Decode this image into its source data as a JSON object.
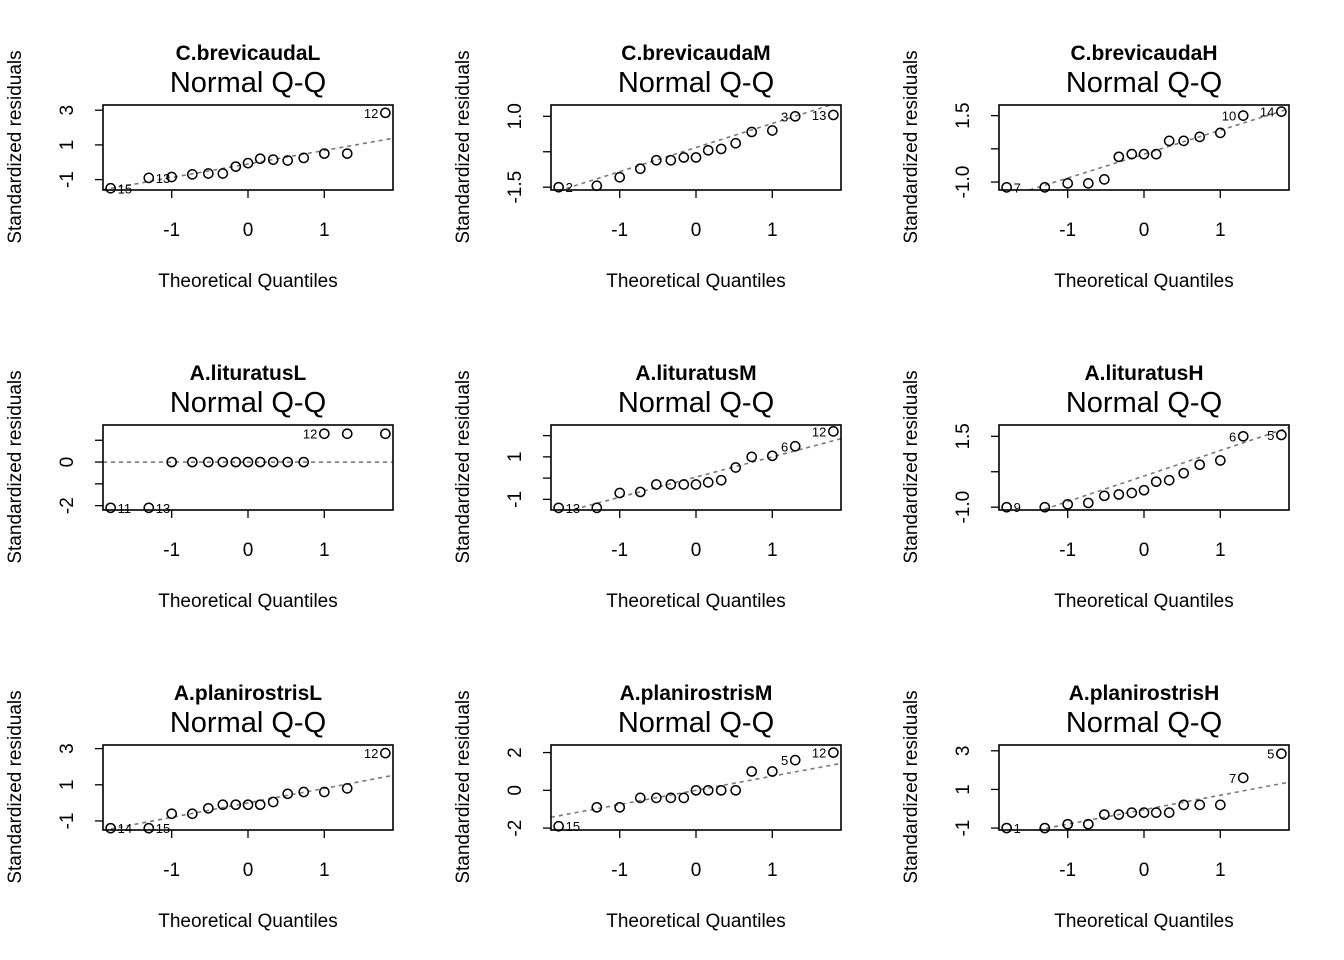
{
  "chart_data": [
    {
      "type": "scatter",
      "title": "C.brevicaudaL",
      "subtitle": "Normal Q-Q",
      "xlabel": "Theoretical Quantiles",
      "ylabel": "Standardized residuals",
      "xticks": [
        -1,
        0,
        1
      ],
      "yticks": [
        -1,
        1,
        3
      ],
      "ytick_labels": [
        "-1",
        "1",
        "3"
      ],
      "ylim": [
        -1.6,
        3.3
      ],
      "xlim": [
        -1.9,
        1.9
      ],
      "x": [
        -1.8,
        -1.3,
        -1.0,
        -0.73,
        -0.52,
        -0.33,
        -0.16,
        0.0,
        0.16,
        0.33,
        0.52,
        0.73,
        1.0,
        1.3,
        1.8
      ],
      "y": [
        -1.5,
        -0.9,
        -0.85,
        -0.7,
        -0.65,
        -0.65,
        -0.25,
        -0.05,
        0.2,
        0.15,
        0.1,
        0.25,
        0.5,
        0.5,
        2.85
      ],
      "ref_line": [
        -0.1,
        0.78
      ],
      "point_labels": [
        {
          "index": 14,
          "text": "12"
        },
        {
          "index": 1,
          "text": "13"
        },
        {
          "index": 0,
          "text": "15"
        }
      ]
    },
    {
      "type": "scatter",
      "title": "C.brevicaudaM",
      "subtitle": "Normal Q-Q",
      "xlabel": "Theoretical Quantiles",
      "ylabel": "Standardized residuals",
      "xticks": [
        -1,
        0,
        1
      ],
      "yticks": [
        -1.5,
        -0.25,
        1.0
      ],
      "ytick_labels": [
        "-1.5",
        "",
        "1.0"
      ],
      "ylim": [
        -1.6,
        1.4
      ],
      "xlim": [
        -1.9,
        1.9
      ],
      "x": [
        -1.8,
        -1.3,
        -1.0,
        -0.73,
        -0.52,
        -0.33,
        -0.16,
        0.0,
        0.16,
        0.33,
        0.52,
        0.73,
        1.0,
        1.3,
        1.8
      ],
      "y": [
        -1.5,
        -1.45,
        -1.15,
        -0.85,
        -0.55,
        -0.55,
        -0.45,
        -0.45,
        -0.2,
        -0.15,
        0.05,
        0.45,
        0.5,
        1.0,
        1.05
      ],
      "ref_line": [
        -0.1,
        0.85
      ],
      "point_labels": [
        {
          "index": 14,
          "text": "13"
        },
        {
          "index": 13,
          "text": "3"
        },
        {
          "index": 0,
          "text": "2"
        }
      ]
    },
    {
      "type": "scatter",
      "title": "C.brevicaudaH",
      "subtitle": "Normal Q-Q",
      "xlabel": "Theoretical Quantiles",
      "ylabel": "Standardized residuals",
      "xticks": [
        -1,
        0,
        1
      ],
      "yticks": [
        -1.0,
        0.25,
        1.5
      ],
      "ytick_labels": [
        "-1.0",
        "",
        "1.5"
      ],
      "ylim": [
        -1.3,
        1.9
      ],
      "xlim": [
        -1.9,
        1.9
      ],
      "x": [
        -1.8,
        -1.3,
        -1.0,
        -0.73,
        -0.52,
        -0.33,
        -0.16,
        0.0,
        0.16,
        0.33,
        0.52,
        0.73,
        1.0,
        1.3,
        1.8
      ],
      "y": [
        -1.2,
        -1.2,
        -1.05,
        -1.05,
        -0.9,
        -0.05,
        0.05,
        0.05,
        0.05,
        0.55,
        0.55,
        0.7,
        0.85,
        1.5,
        1.65
      ],
      "ref_line": [
        0.05,
        0.9
      ],
      "point_labels": [
        {
          "index": 14,
          "text": "14"
        },
        {
          "index": 13,
          "text": "10"
        },
        {
          "index": 0,
          "text": "7"
        }
      ]
    },
    {
      "type": "scatter",
      "title": "A.lituratusL",
      "subtitle": "Normal Q-Q",
      "xlabel": "Theoretical Quantiles",
      "ylabel": "Standardized residuals",
      "xticks": [
        -1,
        0,
        1
      ],
      "yticks": [
        -2,
        -1,
        0,
        1
      ],
      "ytick_labels": [
        "-2",
        "",
        "0",
        ""
      ],
      "ylim": [
        -2.2,
        1.7
      ],
      "xlim": [
        -1.9,
        1.9
      ],
      "x": [
        -1.8,
        -1.3,
        -1.0,
        -0.73,
        -0.52,
        -0.33,
        -0.16,
        0.0,
        0.16,
        0.33,
        0.52,
        0.73,
        1.0,
        1.3,
        1.8
      ],
      "y": [
        -2.1,
        -2.1,
        0.0,
        0.0,
        0.0,
        0.0,
        0.0,
        0.0,
        0.0,
        0.0,
        0.0,
        0.0,
        1.3,
        1.3,
        1.3
      ],
      "ref_line": [
        0.0,
        0.0
      ],
      "point_labels": [
        {
          "index": 12,
          "text": "12"
        },
        {
          "index": 1,
          "text": "13"
        },
        {
          "index": 0,
          "text": "11"
        }
      ]
    },
    {
      "type": "scatter",
      "title": "A.lituratusM",
      "subtitle": "Normal Q-Q",
      "xlabel": "Theoretical Quantiles",
      "ylabel": "Standardized residuals",
      "xticks": [
        -1,
        0,
        1
      ],
      "yticks": [
        -1,
        0,
        1,
        2
      ],
      "ytick_labels": [
        "-1",
        "",
        "1",
        ""
      ],
      "ylim": [
        -1.5,
        2.5
      ],
      "xlim": [
        -1.9,
        1.9
      ],
      "x": [
        -1.8,
        -1.3,
        -1.0,
        -0.73,
        -0.52,
        -0.33,
        -0.16,
        0.0,
        0.16,
        0.33,
        0.52,
        0.73,
        1.0,
        1.3,
        1.8
      ],
      "y": [
        -1.4,
        -1.4,
        -0.7,
        -0.65,
        -0.3,
        -0.3,
        -0.3,
        -0.3,
        -0.2,
        -0.1,
        0.5,
        1.0,
        1.05,
        1.5,
        2.2
      ],
      "ref_line": [
        0.05,
        0.95
      ],
      "point_labels": [
        {
          "index": 14,
          "text": "12"
        },
        {
          "index": 13,
          "text": "6"
        },
        {
          "index": 0,
          "text": "13"
        }
      ]
    },
    {
      "type": "scatter",
      "title": "A.lituratusH",
      "subtitle": "Normal Q-Q",
      "xlabel": "Theoretical Quantiles",
      "ylabel": "Standardized residuals",
      "xticks": [
        -1,
        0,
        1
      ],
      "yticks": [
        -1.0,
        0.25,
        1.5
      ],
      "ytick_labels": [
        "-1.0",
        "",
        "1.5"
      ],
      "ylim": [
        -1.1,
        1.9
      ],
      "xlim": [
        -1.9,
        1.9
      ],
      "x": [
        -1.8,
        -1.3,
        -1.0,
        -0.73,
        -0.52,
        -0.33,
        -0.16,
        0.0,
        0.16,
        0.33,
        0.52,
        0.73,
        1.0,
        1.3,
        1.8
      ],
      "y": [
        -1.0,
        -1.0,
        -0.9,
        -0.85,
        -0.6,
        -0.55,
        -0.5,
        -0.4,
        -0.1,
        -0.05,
        0.2,
        0.5,
        0.65,
        1.5,
        1.55
      ],
      "ref_line": [
        0.1,
        0.9
      ],
      "point_labels": [
        {
          "index": 14,
          "text": "5"
        },
        {
          "index": 13,
          "text": "6"
        },
        {
          "index": 0,
          "text": "9"
        }
      ]
    },
    {
      "type": "scatter",
      "title": "A.planirostrisL",
      "subtitle": "Normal Q-Q",
      "xlabel": "Theoretical Quantiles",
      "ylabel": "Standardized residuals",
      "xticks": [
        -1,
        0,
        1
      ],
      "yticks": [
        -1,
        1,
        3
      ],
      "ytick_labels": [
        "-1",
        "1",
        "3"
      ],
      "ylim": [
        -1.5,
        3.2
      ],
      "xlim": [
        -1.9,
        1.9
      ],
      "x": [
        -1.8,
        -1.3,
        -1.0,
        -0.73,
        -0.52,
        -0.33,
        -0.16,
        0.0,
        0.16,
        0.33,
        0.52,
        0.73,
        1.0,
        1.3,
        1.8
      ],
      "y": [
        -1.4,
        -1.4,
        -0.6,
        -0.6,
        -0.3,
        -0.1,
        -0.1,
        -0.1,
        -0.1,
        0.05,
        0.5,
        0.6,
        0.6,
        0.8,
        2.75
      ],
      "ref_line": [
        0.0,
        0.8
      ],
      "point_labels": [
        {
          "index": 14,
          "text": "12"
        },
        {
          "index": 1,
          "text": "15"
        },
        {
          "index": 0,
          "text": "14"
        }
      ]
    },
    {
      "type": "scatter",
      "title": "A.planirostrisM",
      "subtitle": "Normal Q-Q",
      "xlabel": "Theoretical Quantiles",
      "ylabel": "Standardized residuals",
      "xticks": [
        -1,
        0,
        1
      ],
      "yticks": [
        -2,
        0,
        2
      ],
      "ytick_labels": [
        "-2",
        "0",
        "2"
      ],
      "ylim": [
        -2.1,
        2.4
      ],
      "xlim": [
        -1.9,
        1.9
      ],
      "x": [
        -1.8,
        -1.3,
        -1.0,
        -0.73,
        -0.52,
        -0.33,
        -0.16,
        0.0,
        0.16,
        0.33,
        0.52,
        0.73,
        1.0,
        1.3,
        1.8
      ],
      "y": [
        -1.9,
        -0.9,
        -0.9,
        -0.4,
        -0.4,
        -0.4,
        -0.4,
        0.0,
        0.0,
        0.0,
        0.0,
        1.0,
        1.0,
        1.6,
        2.0
      ],
      "ref_line": [
        0.0,
        0.75
      ],
      "point_labels": [
        {
          "index": 14,
          "text": "12"
        },
        {
          "index": 13,
          "text": "5"
        },
        {
          "index": 0,
          "text": "15"
        }
      ]
    },
    {
      "type": "scatter",
      "title": "A.planirostrisH",
      "subtitle": "Normal Q-Q",
      "xlabel": "Theoretical Quantiles",
      "ylabel": "Standardized residuals",
      "xticks": [
        -1,
        0,
        1
      ],
      "yticks": [
        -1,
        1,
        3
      ],
      "ytick_labels": [
        "-1",
        "1",
        "3"
      ],
      "ylim": [
        -1.1,
        3.3
      ],
      "xlim": [
        -1.9,
        1.9
      ],
      "x": [
        -1.8,
        -1.3,
        -1.0,
        -0.73,
        -0.52,
        -0.33,
        -0.16,
        0.0,
        0.16,
        0.33,
        0.52,
        0.73,
        1.0,
        1.3,
        1.8
      ],
      "y": [
        -1.0,
        -1.0,
        -0.8,
        -0.8,
        -0.3,
        -0.3,
        -0.2,
        -0.2,
        -0.2,
        -0.2,
        0.2,
        0.2,
        0.2,
        1.6,
        2.85
      ],
      "ref_line": [
        -0.05,
        0.75
      ],
      "point_labels": [
        {
          "index": 14,
          "text": "5"
        },
        {
          "index": 13,
          "text": "7"
        },
        {
          "index": 0,
          "text": "1"
        }
      ]
    }
  ]
}
